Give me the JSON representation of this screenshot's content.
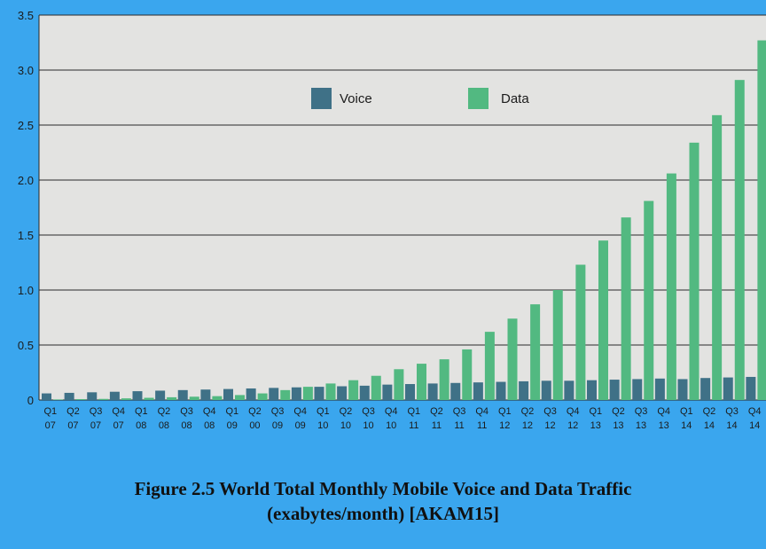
{
  "chart_data": {
    "type": "bar",
    "title": "",
    "xlabel": "",
    "ylabel": "",
    "ylim": [
      0,
      3.5
    ],
    "yticks": [
      "0",
      "0.5",
      "1.0",
      "1.5",
      "2.0",
      "2.5",
      "3.0",
      "3.5"
    ],
    "grid": true,
    "legend_position": "top-center",
    "categories": [
      [
        "Q1",
        "07"
      ],
      [
        "Q2",
        "07"
      ],
      [
        "Q3",
        "07"
      ],
      [
        "Q4",
        "07"
      ],
      [
        "Q1",
        "08"
      ],
      [
        "Q2",
        "08"
      ],
      [
        "Q3",
        "08"
      ],
      [
        "Q4",
        "08"
      ],
      [
        "Q1",
        "09"
      ],
      [
        "Q2",
        "00"
      ],
      [
        "Q3",
        "09"
      ],
      [
        "Q4",
        "09"
      ],
      [
        "Q1",
        "10"
      ],
      [
        "Q2",
        "10"
      ],
      [
        "Q3",
        "10"
      ],
      [
        "Q4",
        "10"
      ],
      [
        "Q1",
        "11"
      ],
      [
        "Q2",
        "11"
      ],
      [
        "Q3",
        "11"
      ],
      [
        "Q4",
        "11"
      ],
      [
        "Q1",
        "12"
      ],
      [
        "Q2",
        "12"
      ],
      [
        "Q3",
        "12"
      ],
      [
        "Q4",
        "12"
      ],
      [
        "Q1",
        "13"
      ],
      [
        "Q2",
        "13"
      ],
      [
        "Q3",
        "13"
      ],
      [
        "Q4",
        "13"
      ],
      [
        "Q1",
        "14"
      ],
      [
        "Q2",
        "14"
      ],
      [
        "Q3",
        "14"
      ],
      [
        "Q4",
        "14"
      ]
    ],
    "series": [
      {
        "name": "Voice",
        "color": "#3f7187",
        "values": [
          0.06,
          0.065,
          0.07,
          0.075,
          0.08,
          0.085,
          0.09,
          0.095,
          0.1,
          0.105,
          0.11,
          0.115,
          0.12,
          0.125,
          0.13,
          0.14,
          0.145,
          0.15,
          0.155,
          0.16,
          0.165,
          0.17,
          0.175,
          0.175,
          0.18,
          0.185,
          0.19,
          0.195,
          0.19,
          0.2,
          0.205,
          0.21
        ]
      },
      {
        "name": "Data",
        "color": "#52b981",
        "values": [
          0.005,
          0.008,
          0.01,
          0.015,
          0.02,
          0.025,
          0.03,
          0.035,
          0.045,
          0.06,
          0.09,
          0.12,
          0.15,
          0.18,
          0.22,
          0.28,
          0.33,
          0.37,
          0.46,
          0.62,
          0.74,
          0.87,
          1.0,
          1.23,
          1.45,
          1.66,
          1.81,
          2.06,
          2.34,
          2.59,
          2.91,
          3.27
        ]
      }
    ]
  },
  "caption": {
    "line1": "Figure 2.5 World Total Monthly Mobile Voice and Data Traffic",
    "line2": "(exabytes/month) [AKAM15]"
  },
  "colors": {
    "page_background": "#3aa6ee",
    "plot_background": "#e3e3e1"
  }
}
